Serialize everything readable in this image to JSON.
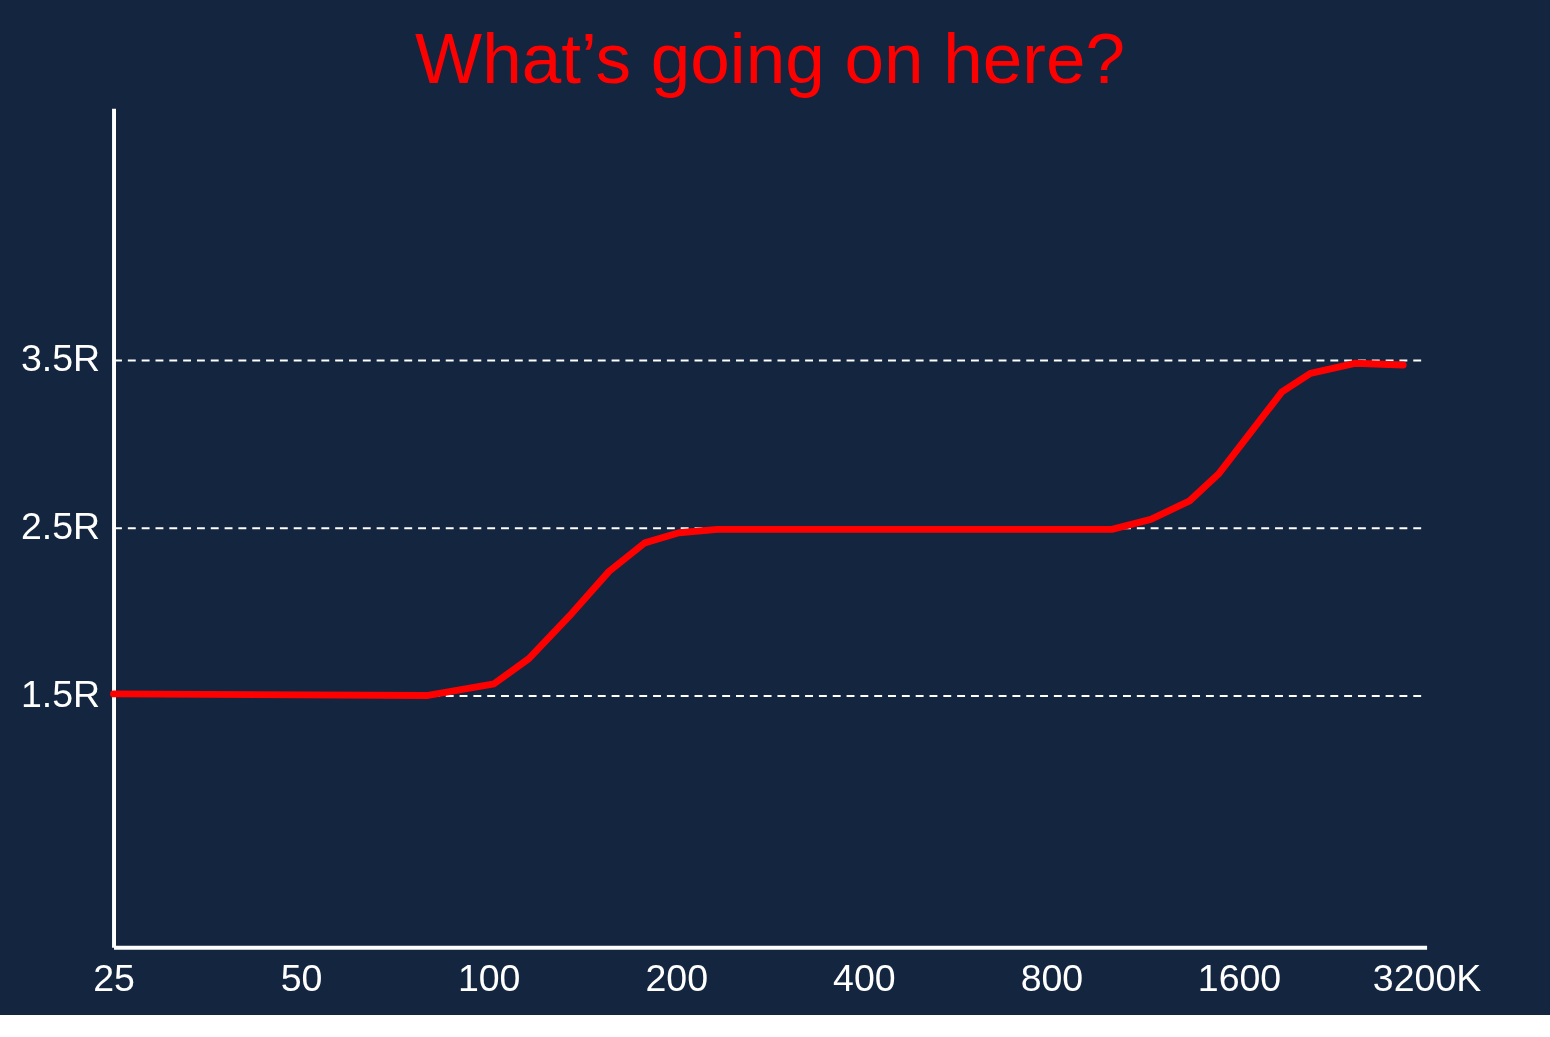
{
  "chart_data": {
    "type": "line",
    "title": "What’s going on here?",
    "x": [
      25,
      79.5,
      102,
      116,
      136,
      156,
      178,
      202,
      233,
      1000,
      1155,
      1333,
      1483,
      1680,
      1875,
      2083,
      2455,
      2935
    ],
    "series": [
      {
        "color": "#ff0000",
        "values": [
          1.51,
          1.5,
          1.57,
          1.72,
          1.99,
          2.24,
          2.41,
          2.47,
          2.49,
          2.49,
          2.55,
          2.66,
          2.82,
          3.08,
          3.31,
          3.42,
          3.48,
          3.47
        ]
      }
    ],
    "log": "x",
    "xlim": [
      25,
      3200
    ],
    "ylim": [
      0,
      5
    ],
    "xticks": [
      25,
      50,
      100,
      200,
      400,
      800,
      1600,
      {
        "value": 3200,
        "label": "3200K"
      }
    ],
    "yticks": [
      {
        "value": 1.5,
        "label": "1.5R"
      },
      {
        "value": 2.5,
        "label": "2.5R"
      },
      {
        "value": 3.5,
        "label": "3.5R"
      }
    ],
    "grid": "y",
    "marker": "none",
    "line_style": "solid"
  }
}
